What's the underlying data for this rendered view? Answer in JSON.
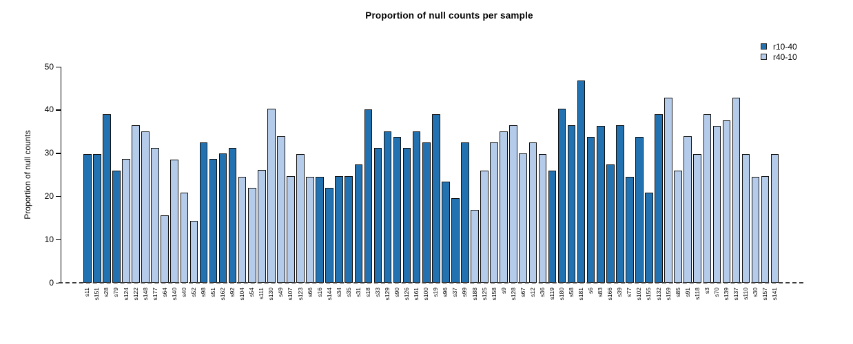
{
  "chart_data": {
    "type": "bar",
    "title": "Proportion of null counts per sample",
    "xlabel": "",
    "ylabel": "Proportion of null counts",
    "ylim": [
      0,
      50
    ],
    "yticks": [
      0,
      10,
      20,
      30,
      40,
      50
    ],
    "grid": false,
    "zero_line": {
      "style": "dashed",
      "y": 0
    },
    "legend": {
      "position": "top-right",
      "entries": [
        {
          "name": "r10-40",
          "color": "#2272B2"
        },
        {
          "name": "r40-10",
          "color": "#B4CBE9"
        }
      ]
    },
    "bars": [
      {
        "label": "s11",
        "value": 29.8,
        "series": "r10-40"
      },
      {
        "label": "s151",
        "value": 29.8,
        "series": "r10-40"
      },
      {
        "label": "s28",
        "value": 39.0,
        "series": "r10-40"
      },
      {
        "label": "s79",
        "value": 26.0,
        "series": "r10-40"
      },
      {
        "label": "s124",
        "value": 28.6,
        "series": "r40-10"
      },
      {
        "label": "s122",
        "value": 36.4,
        "series": "r40-10"
      },
      {
        "label": "s148",
        "value": 35.0,
        "series": "r40-10"
      },
      {
        "label": "s177",
        "value": 31.2,
        "series": "r40-10"
      },
      {
        "label": "s64",
        "value": 15.6,
        "series": "r40-10"
      },
      {
        "label": "s140",
        "value": 28.5,
        "series": "r40-10"
      },
      {
        "label": "s40",
        "value": 20.8,
        "series": "r40-10"
      },
      {
        "label": "s52",
        "value": 14.3,
        "series": "r40-10"
      },
      {
        "label": "s98",
        "value": 32.5,
        "series": "r10-40"
      },
      {
        "label": "s51",
        "value": 28.6,
        "series": "r10-40"
      },
      {
        "label": "s162",
        "value": 29.9,
        "series": "r10-40"
      },
      {
        "label": "s92",
        "value": 31.1,
        "series": "r10-40"
      },
      {
        "label": "s104",
        "value": 24.5,
        "series": "r40-10"
      },
      {
        "label": "s54",
        "value": 22.0,
        "series": "r40-10"
      },
      {
        "label": "s111",
        "value": 26.1,
        "series": "r40-10"
      },
      {
        "label": "s130",
        "value": 40.2,
        "series": "r40-10"
      },
      {
        "label": "s49",
        "value": 33.8,
        "series": "r40-10"
      },
      {
        "label": "s107",
        "value": 24.6,
        "series": "r40-10"
      },
      {
        "label": "s123",
        "value": 29.8,
        "series": "r40-10"
      },
      {
        "label": "s66",
        "value": 24.5,
        "series": "r40-10"
      },
      {
        "label": "s16",
        "value": 24.5,
        "series": "r10-40"
      },
      {
        "label": "s144",
        "value": 22.0,
        "series": "r10-40"
      },
      {
        "label": "s34",
        "value": 24.6,
        "series": "r10-40"
      },
      {
        "label": "s35",
        "value": 24.6,
        "series": "r10-40"
      },
      {
        "label": "s31",
        "value": 27.3,
        "series": "r10-40"
      },
      {
        "label": "s18",
        "value": 40.1,
        "series": "r10-40"
      },
      {
        "label": "s33",
        "value": 31.2,
        "series": "r10-40"
      },
      {
        "label": "s129",
        "value": 35.0,
        "series": "r10-40"
      },
      {
        "label": "s90",
        "value": 33.7,
        "series": "r10-40"
      },
      {
        "label": "s126",
        "value": 31.2,
        "series": "r10-40"
      },
      {
        "label": "s161",
        "value": 35.0,
        "series": "r10-40"
      },
      {
        "label": "s100",
        "value": 32.4,
        "series": "r10-40"
      },
      {
        "label": "s19",
        "value": 38.9,
        "series": "r10-40"
      },
      {
        "label": "s96",
        "value": 23.3,
        "series": "r10-40"
      },
      {
        "label": "s37",
        "value": 19.6,
        "series": "r10-40"
      },
      {
        "label": "s99",
        "value": 32.4,
        "series": "r10-40"
      },
      {
        "label": "s188",
        "value": 16.9,
        "series": "r40-10"
      },
      {
        "label": "s125",
        "value": 26.0,
        "series": "r40-10"
      },
      {
        "label": "s158",
        "value": 32.4,
        "series": "r40-10"
      },
      {
        "label": "s9",
        "value": 35.0,
        "series": "r40-10"
      },
      {
        "label": "s128",
        "value": 36.4,
        "series": "r40-10"
      },
      {
        "label": "s67",
        "value": 29.9,
        "series": "r40-10"
      },
      {
        "label": "s12",
        "value": 32.5,
        "series": "r40-10"
      },
      {
        "label": "s36",
        "value": 29.8,
        "series": "r40-10"
      },
      {
        "label": "s119",
        "value": 26.0,
        "series": "r10-40"
      },
      {
        "label": "s180",
        "value": 40.2,
        "series": "r10-40"
      },
      {
        "label": "s58",
        "value": 36.4,
        "series": "r10-40"
      },
      {
        "label": "s181",
        "value": 46.8,
        "series": "r10-40"
      },
      {
        "label": "s6",
        "value": 33.7,
        "series": "r10-40"
      },
      {
        "label": "s83",
        "value": 36.3,
        "series": "r10-40"
      },
      {
        "label": "s166",
        "value": 27.3,
        "series": "r10-40"
      },
      {
        "label": "s39",
        "value": 36.4,
        "series": "r10-40"
      },
      {
        "label": "s77",
        "value": 24.5,
        "series": "r10-40"
      },
      {
        "label": "s102",
        "value": 33.7,
        "series": "r10-40"
      },
      {
        "label": "s155",
        "value": 20.8,
        "series": "r10-40"
      },
      {
        "label": "s132",
        "value": 38.9,
        "series": "r10-40"
      },
      {
        "label": "s159",
        "value": 42.8,
        "series": "r40-10"
      },
      {
        "label": "s85",
        "value": 26.0,
        "series": "r40-10"
      },
      {
        "label": "s91",
        "value": 33.8,
        "series": "r40-10"
      },
      {
        "label": "s118",
        "value": 29.8,
        "series": "r40-10"
      },
      {
        "label": "s3",
        "value": 39.0,
        "series": "r40-10"
      },
      {
        "label": "s70",
        "value": 36.3,
        "series": "r40-10"
      },
      {
        "label": "s139",
        "value": 37.6,
        "series": "r40-10"
      },
      {
        "label": "s137",
        "value": 42.8,
        "series": "r40-10"
      },
      {
        "label": "s110",
        "value": 29.8,
        "series": "r40-10"
      },
      {
        "label": "s30",
        "value": 24.5,
        "series": "r40-10"
      },
      {
        "label": "s157",
        "value": 24.6,
        "series": "r40-10"
      },
      {
        "label": "s141",
        "value": 29.8,
        "series": "r40-10"
      }
    ]
  }
}
